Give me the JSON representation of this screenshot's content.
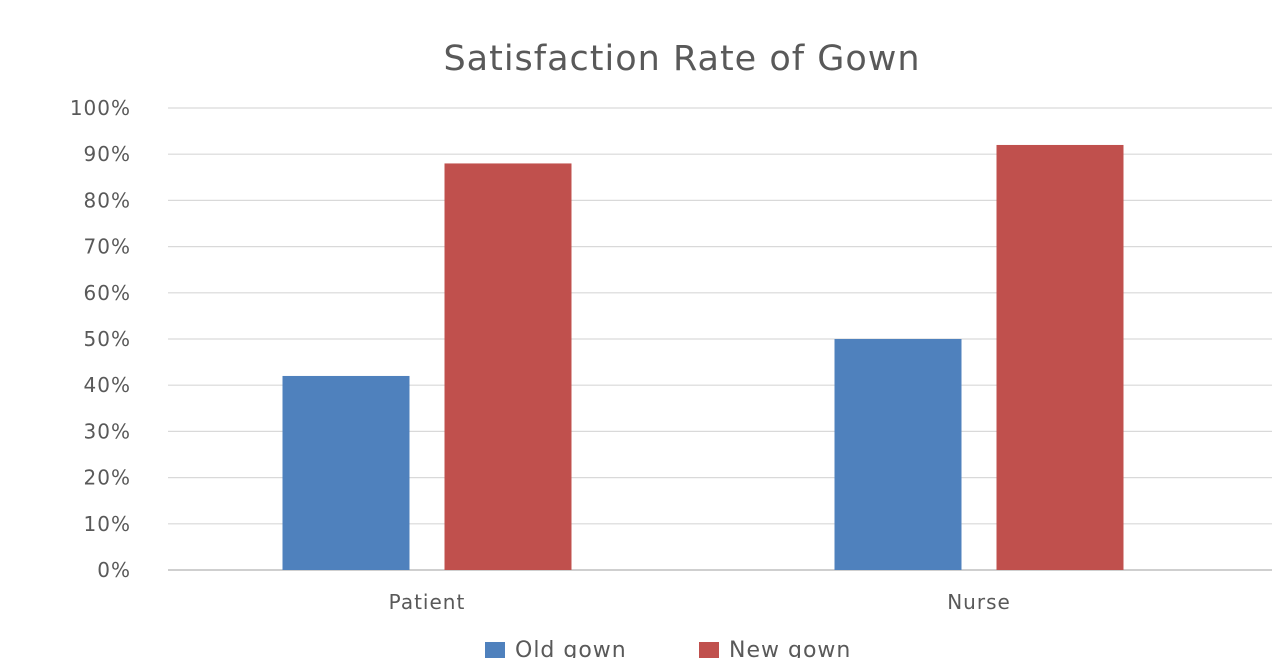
{
  "chart_data": {
    "type": "bar",
    "title": "Satisfaction Rate of Gown",
    "categories": [
      "Patient",
      "Nurse"
    ],
    "series": [
      {
        "name": "Old gown",
        "values": [
          42,
          50
        ],
        "color": "#4f81bd"
      },
      {
        "name": "New gown",
        "values": [
          88,
          92
        ],
        "color": "#c0504d"
      }
    ],
    "ylim": [
      0,
      100
    ],
    "yticks": [
      0,
      10,
      20,
      30,
      40,
      50,
      60,
      70,
      80,
      90,
      100
    ],
    "ytick_labels": [
      "0%",
      "10%",
      "20%",
      "30%",
      "40%",
      "50%",
      "60%",
      "70%",
      "80%",
      "90%",
      "100%"
    ],
    "grid": true,
    "legend_position": "bottom"
  }
}
